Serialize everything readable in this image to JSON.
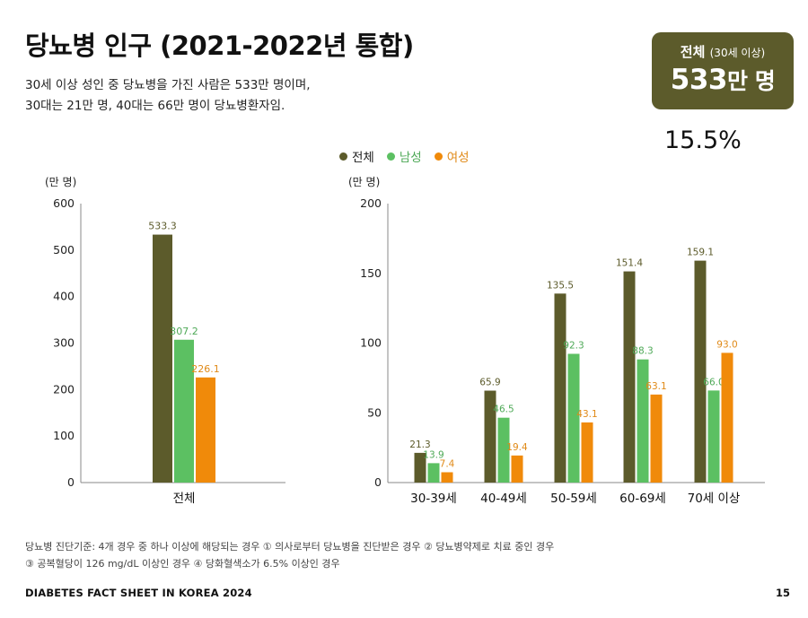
{
  "header": {
    "title": "당뇨병 인구 (2021-2022년 통합)",
    "subtitle_line1": "30세 이상 성인 중 당뇨병을 가진 사람은 533만 명이며,",
    "subtitle_line2": "30대는 21만 명, 40대는 66만 명이 당뇨병환자임."
  },
  "summary": {
    "label": "전체",
    "label_sub": "(30세 이상)",
    "value": "533",
    "value_unit": "만 명",
    "percent": "15.5%"
  },
  "legend": {
    "items": [
      {
        "label": "전체",
        "color": "#5c5b2b"
      },
      {
        "label": "남성",
        "color": "#5cc062"
      },
      {
        "label": "여성",
        "color": "#f08a0a"
      }
    ]
  },
  "colors": {
    "total": "#5c5b2b",
    "male": "#5cc062",
    "female": "#f08a0a",
    "male_label": "#4ea957",
    "female_label": "#e08a18"
  },
  "chart_data": [
    {
      "type": "bar",
      "unit_label": "(만 명)",
      "categories": [
        "전체"
      ],
      "series": [
        {
          "name": "전체",
          "values": [
            533.3
          ]
        },
        {
          "name": "남성",
          "values": [
            307.2
          ]
        },
        {
          "name": "여성",
          "values": [
            226.1
          ]
        }
      ],
      "ylim": [
        0,
        600
      ],
      "yticks": [
        0,
        100,
        200,
        300,
        400,
        500,
        600
      ],
      "data_labels": [
        [
          "533.3"
        ],
        [
          "307.2"
        ],
        [
          "226.1"
        ]
      ]
    },
    {
      "type": "bar",
      "unit_label": "(만 명)",
      "categories": [
        "30-39세",
        "40-49세",
        "50-59세",
        "60-69세",
        "70세 이상"
      ],
      "series": [
        {
          "name": "전체",
          "values": [
            21.3,
            65.9,
            135.5,
            151.4,
            159.1
          ]
        },
        {
          "name": "남성",
          "values": [
            13.9,
            46.5,
            92.3,
            88.3,
            66.0
          ]
        },
        {
          "name": "여성",
          "values": [
            7.4,
            19.4,
            43.1,
            63.1,
            93.0
          ]
        }
      ],
      "ylim": [
        0,
        200
      ],
      "yticks": [
        0,
        50,
        100,
        150,
        200
      ],
      "data_labels": [
        [
          "21.3",
          "65.9",
          "135.5",
          "151.4",
          "159.1"
        ],
        [
          "13.9",
          "46.5",
          "92.3",
          "88.3",
          "66.0"
        ],
        [
          "7.4",
          "19.4",
          "43.1",
          "63.1",
          "93.0"
        ]
      ]
    }
  ],
  "footnote": {
    "line1": "당뇨병 진단기준: 4개 경우 중 하나 이상에 해당되는 경우 ① 의사로부터 당뇨병을 진단받은 경우 ② 당뇨병약제로 치료 중인 경우",
    "line2": "③ 공복혈당이 126 mg/dL 이상인 경우 ④ 당화혈색소가 6.5% 이상인 경우"
  },
  "footer": {
    "source": "DIABETES FACT SHEET IN KOREA 2024",
    "page_number": "15"
  }
}
